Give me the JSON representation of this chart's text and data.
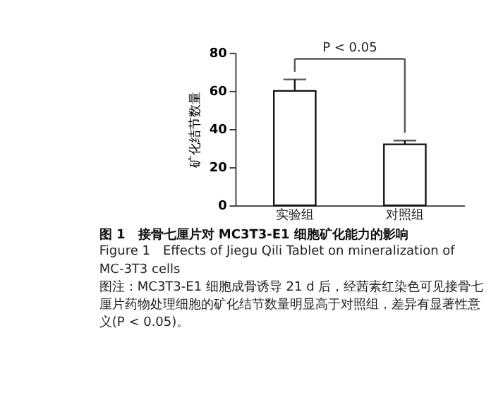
{
  "chart_data": {
    "type": "bar",
    "title": "图 1　接骨七厘片对 MC3T3-E1 细胞矿化能力的影响",
    "subtitle": "Figure 1　Effects of Jiegu Qili Tablet on mineralization of MC-3T3 cells",
    "ylabel": "矿化结节数量",
    "categories": [
      "实验组",
      "对照组"
    ],
    "values": [
      60,
      32
    ],
    "errors": [
      6,
      2
    ],
    "color": "#ffffff",
    "ylim": [
      0,
      80
    ],
    "yticks": [
      0,
      20,
      40,
      60,
      80
    ],
    "grid": false,
    "annotations": [
      "P < 0.05",
      "图注：MC3T3-E1 细胞成骨诱导 21 d 后，经茜素红染色可见接骨七厘片药物处理细胞的矿化结节数量明显高于对照组，差异有显著性意义(P < 0.05)。"
    ]
  }
}
